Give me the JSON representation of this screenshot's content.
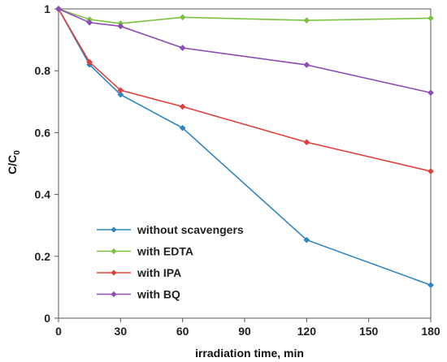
{
  "chart_data": {
    "type": "line",
    "title": "",
    "xlabel": "irradiation time, min",
    "ylabel": "C/C",
    "ylabel_subscript": "0",
    "xlim": [
      0,
      180
    ],
    "ylim": [
      0,
      1
    ],
    "xticks": [
      0,
      30,
      60,
      90,
      120,
      150,
      180
    ],
    "yticks": [
      0,
      0.2,
      0.4,
      0.6,
      0.8,
      1
    ],
    "ytick_labels": [
      "0",
      "0.2",
      "0.4",
      "0.6",
      "0.8",
      "1"
    ],
    "grid": false,
    "legend_position": "bottom-left",
    "x": [
      0,
      15,
      30,
      60,
      120,
      180
    ],
    "series": [
      {
        "name": "without scavengers",
        "color": "#2e86c1",
        "values": [
          1.0,
          0.82,
          0.723,
          0.615,
          0.253,
          0.107
        ]
      },
      {
        "name": "with EDTA",
        "color": "#7cc242",
        "values": [
          1.0,
          0.966,
          0.953,
          0.973,
          0.963,
          0.97
        ]
      },
      {
        "name": "with IPA",
        "color": "#e0403a",
        "values": [
          1.0,
          0.828,
          0.737,
          0.684,
          0.569,
          0.475
        ]
      },
      {
        "name": "with BQ",
        "color": "#8e4db5",
        "values": [
          1.0,
          0.956,
          0.944,
          0.874,
          0.819,
          0.729
        ]
      }
    ]
  }
}
